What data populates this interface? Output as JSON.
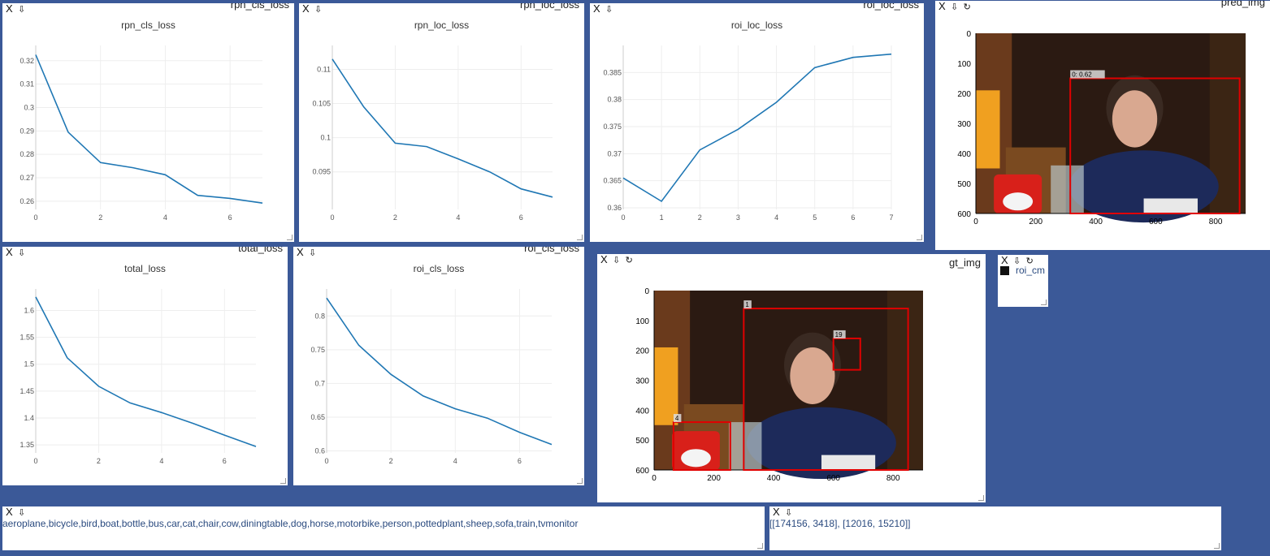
{
  "panes": {
    "rpn_cls_loss": {
      "name": "rpn_cls_loss",
      "close": "X",
      "pin": "⇩"
    },
    "rpn_loc_loss": {
      "name": "rpn_loc_loss",
      "close": "X",
      "pin": "⇩"
    },
    "roi_loc_loss": {
      "name": "roi_loc_loss",
      "close": "X",
      "pin": "⇩"
    },
    "pred_img": {
      "name": "pred_img",
      "close": "X",
      "pin": "⇩",
      "refresh": "↻"
    },
    "total_loss": {
      "name": "total_loss",
      "close": "X",
      "pin": "⇩"
    },
    "roi_cls_loss": {
      "name": "roi_cls_loss",
      "close": "X",
      "pin": "⇩"
    },
    "gt_img": {
      "name": "gt_img",
      "close": "X",
      "pin": "⇩",
      "refresh": "↻"
    },
    "roi_cm": {
      "name": "roi_cm",
      "close": "X",
      "pin": "⇩",
      "refresh": "↻"
    },
    "classes": {
      "close": "X",
      "pin": "⇩",
      "text": "aeroplane,bicycle,bird,boat,bottle,bus,car,cat,chair,cow,diningtable,dog,horse,motorbike,person,pottedplant,sheep,sofa,train,tvmonitor"
    },
    "rpn_cm": {
      "close": "X",
      "pin": "⇩",
      "text": "[[174156, 3418], [12016, 15210]]"
    }
  },
  "image_labels": {
    "pred_box": "0: 0.62",
    "gt_box_person": "1",
    "gt_box_tv": "19",
    "gt_box_bottle": "4"
  },
  "colors": {
    "background": "#3b5998",
    "line": "#1f77b4",
    "box": "#e00000",
    "text": "#2a4a7f"
  },
  "chart_data": [
    {
      "id": "rpn_cls_loss",
      "type": "line",
      "title": "rpn_cls_loss",
      "grid": true,
      "x": [
        0,
        1,
        2,
        3,
        4,
        5,
        6,
        7
      ],
      "values": [
        0.3225,
        0.2895,
        0.2765,
        0.2743,
        0.2713,
        0.2625,
        0.2612,
        0.2592
      ],
      "xticks": [
        0,
        2,
        4,
        6
      ],
      "xlim": [
        0,
        7
      ],
      "yticks": [
        0.26,
        0.27,
        0.28,
        0.29,
        0.3,
        0.31,
        0.32
      ],
      "ylim": [
        0.2565,
        0.3265
      ]
    },
    {
      "id": "rpn_loc_loss",
      "type": "line",
      "title": "rpn_loc_loss",
      "grid": true,
      "x": [
        0,
        1,
        2,
        3,
        4,
        5,
        6,
        7
      ],
      "values": [
        0.1115,
        0.1045,
        0.0992,
        0.0987,
        0.0969,
        0.095,
        0.0925,
        0.0913
      ],
      "xticks": [
        0,
        2,
        4,
        6
      ],
      "xlim": [
        0,
        7
      ],
      "yticks": [
        0.095,
        0.1,
        0.105,
        0.11
      ],
      "ylim": [
        0.0895,
        0.1135
      ]
    },
    {
      "id": "roi_loc_loss",
      "type": "line",
      "title": "roi_loc_loss",
      "grid": true,
      "x": [
        0,
        1,
        2,
        3,
        4,
        5,
        6,
        7
      ],
      "values": [
        0.3655,
        0.3612,
        0.3707,
        0.3745,
        0.3795,
        0.3859,
        0.3878,
        0.3884
      ],
      "xticks": [
        0,
        1,
        2,
        3,
        4,
        5,
        6,
        7
      ],
      "xlim": [
        0,
        7
      ],
      "yticks": [
        0.36,
        0.365,
        0.37,
        0.375,
        0.38,
        0.385
      ],
      "ylim": [
        0.3597,
        0.39
      ]
    },
    {
      "id": "total_loss",
      "type": "line",
      "title": "total_loss",
      "grid": true,
      "x": [
        0,
        1,
        2,
        3,
        4,
        5,
        6,
        7
      ],
      "values": [
        1.625,
        1.512,
        1.459,
        1.428,
        1.41,
        1.39,
        1.368,
        1.347
      ],
      "xticks": [
        0,
        2,
        4,
        6
      ],
      "xlim": [
        0,
        7
      ],
      "yticks": [
        1.35,
        1.4,
        1.45,
        1.5,
        1.55,
        1.6
      ],
      "ylim": [
        1.335,
        1.64
      ]
    },
    {
      "id": "roi_cls_loss",
      "type": "line",
      "title": "roi_cls_loss",
      "grid": true,
      "x": [
        0,
        1,
        2,
        3,
        4,
        5,
        6,
        7
      ],
      "values": [
        0.8265,
        0.7565,
        0.7135,
        0.6815,
        0.6625,
        0.6485,
        0.6275,
        0.6095
      ],
      "xticks": [
        0,
        2,
        4,
        6
      ],
      "xlim": [
        0,
        7
      ],
      "yticks": [
        0.6,
        0.65,
        0.7,
        0.75,
        0.8
      ],
      "ylim": [
        0.597,
        0.84
      ]
    }
  ],
  "image_axes": {
    "pred": {
      "xticks": [
        0,
        200,
        400,
        600,
        800
      ],
      "yticks": [
        0,
        100,
        200,
        300,
        400,
        500,
        600
      ],
      "xlim": [
        0,
        900
      ],
      "ylim": [
        0,
        600
      ]
    },
    "gt": {
      "xticks": [
        0,
        200,
        400,
        600,
        800
      ],
      "yticks": [
        0,
        100,
        200,
        300,
        400,
        500,
        600
      ],
      "xlim": [
        0,
        900
      ],
      "ylim": [
        0,
        600
      ]
    }
  }
}
